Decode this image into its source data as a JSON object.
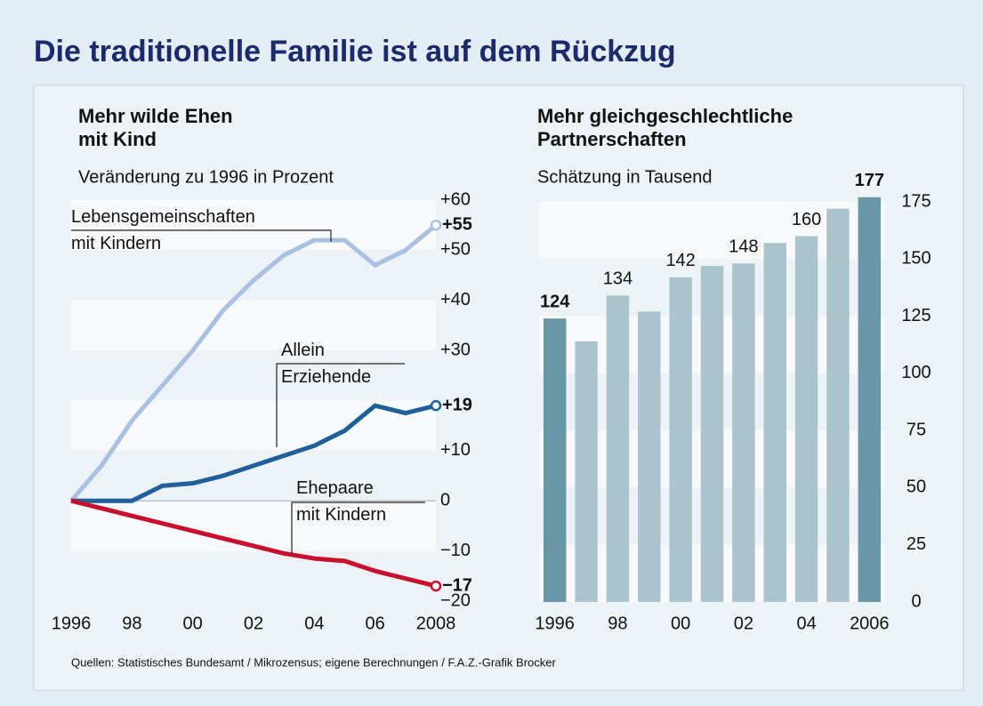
{
  "title": "Die traditionelle Familie ist auf dem Rückzug",
  "source": "Quellen: Statistisches Bundesamt / Mikrozensus; eigene Berechnungen / F.A.Z.-Grafik Brocker",
  "chart_data": [
    {
      "type": "line",
      "title": "Mehr wilde Ehen\nmit Kind",
      "subtitle": "Veränderung zu 1996 in Prozent",
      "x": [
        1996,
        1997,
        1998,
        1999,
        2000,
        2001,
        2002,
        2003,
        2004,
        2005,
        2006,
        2007,
        2008
      ],
      "xlim": [
        1996,
        2008
      ],
      "xticks": [
        1996,
        {
          "value": 1998,
          "label": "98"
        },
        {
          "value": 2000,
          "label": "00"
        },
        {
          "value": 2002,
          "label": "02"
        },
        {
          "value": 2004,
          "label": "04"
        },
        {
          "value": 2006,
          "label": "06"
        },
        2008
      ],
      "ylim": [
        -20,
        60
      ],
      "yticks": [
        {
          "value": 60,
          "label": "+60"
        },
        {
          "value": 50,
          "label": "+50"
        },
        {
          "value": 40,
          "label": "+40"
        },
        {
          "value": 30,
          "label": "+30"
        },
        {
          "value": 10,
          "label": "+10"
        },
        0,
        {
          "value": -10,
          "label": "−10"
        },
        {
          "value": -20,
          "label": "−20"
        }
      ],
      "series": [
        {
          "name": "Lebensgemeinschaften\nmit Kindern",
          "color": "#a9c1e0",
          "end_label": "+55",
          "values": [
            0,
            7,
            16,
            23,
            30,
            38,
            44,
            49,
            52,
            52,
            47,
            50,
            55
          ]
        },
        {
          "name": "Allein\nErziehende",
          "color": "#1f5f9a",
          "end_label": "+19",
          "values": [
            0,
            0,
            0,
            3,
            3.5,
            5,
            7,
            9,
            11,
            14,
            19,
            17.5,
            19
          ]
        },
        {
          "name": "Ehepaare\nmit Kindern",
          "color": "#c8102e",
          "end_label": "−17",
          "values": [
            0,
            -1.5,
            -3,
            -4.5,
            -6,
            -7.5,
            -9,
            -10.5,
            -11.5,
            -12,
            -14,
            -15.5,
            -17
          ]
        }
      ]
    },
    {
      "type": "bar",
      "title": "Mehr gleichgeschlechtliche\nPartnerschaften",
      "subtitle": "Schätzung in Tausend",
      "categories": [
        "1996",
        null,
        "98",
        null,
        "00",
        null,
        "02",
        null,
        "04",
        null,
        "2006"
      ],
      "values": [
        124,
        114,
        134,
        127,
        142,
        147,
        148,
        157,
        160,
        172,
        177
      ],
      "value_labels": [
        "124",
        null,
        "134",
        null,
        "142",
        null,
        "148",
        null,
        "160",
        null,
        "177"
      ],
      "color": "#a9c4cc",
      "colors": [
        "#6a97a7",
        "#a9c4cc",
        "#a9c4cc",
        "#a9c4cc",
        "#a9c4cc",
        "#a9c4cc",
        "#a9c4cc",
        "#a9c4cc",
        "#a9c4cc",
        "#a9c4cc",
        "#6a97a7"
      ],
      "ylim": [
        0,
        175
      ],
      "yticks": [
        0,
        25,
        50,
        75,
        100,
        125,
        150,
        175
      ]
    }
  ]
}
